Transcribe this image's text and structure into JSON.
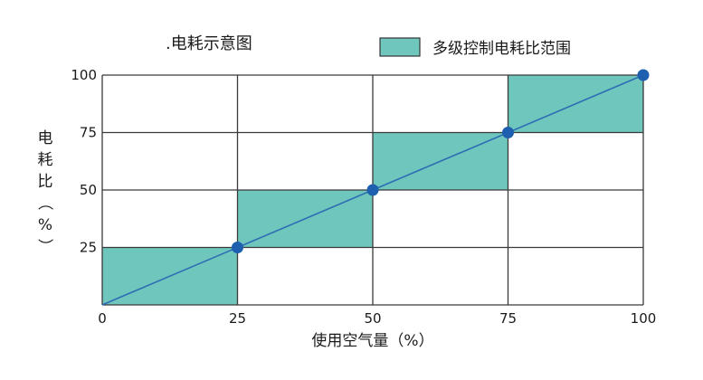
{
  "chart_data": {
    "type": "area",
    "title": ".电耗示意图",
    "xlabel": "使用空气量（%）",
    "ylabel": "电耗比（%）",
    "xlim": [
      0,
      100
    ],
    "ylim": [
      0,
      100
    ],
    "x_ticks": [
      "0",
      "25",
      "50",
      "75",
      "100"
    ],
    "y_ticks": [
      "25",
      "50",
      "75",
      "100"
    ],
    "grid": true,
    "legend": {
      "label": "多级控制电耗比范围",
      "position": "top-right"
    },
    "step_band": [
      {
        "x0": 0,
        "x1": 25,
        "y0": 0,
        "y1": 25
      },
      {
        "x0": 25,
        "x1": 50,
        "y0": 25,
        "y1": 50
      },
      {
        "x0": 50,
        "x1": 75,
        "y0": 50,
        "y1": 75
      },
      {
        "x0": 75,
        "x1": 100,
        "y0": 75,
        "y1": 100
      }
    ],
    "line": {
      "x": [
        0,
        100
      ],
      "y": [
        0,
        100
      ]
    },
    "points": [
      {
        "x": 25,
        "y": 25
      },
      {
        "x": 50,
        "y": 50
      },
      {
        "x": 75,
        "y": 75
      },
      {
        "x": 100,
        "y": 100
      }
    ],
    "colors": {
      "band_fill": "#6ec6bc",
      "line": "#2e6db4",
      "point": "#1f5fb0",
      "grid": "#3a3a3a"
    }
  }
}
